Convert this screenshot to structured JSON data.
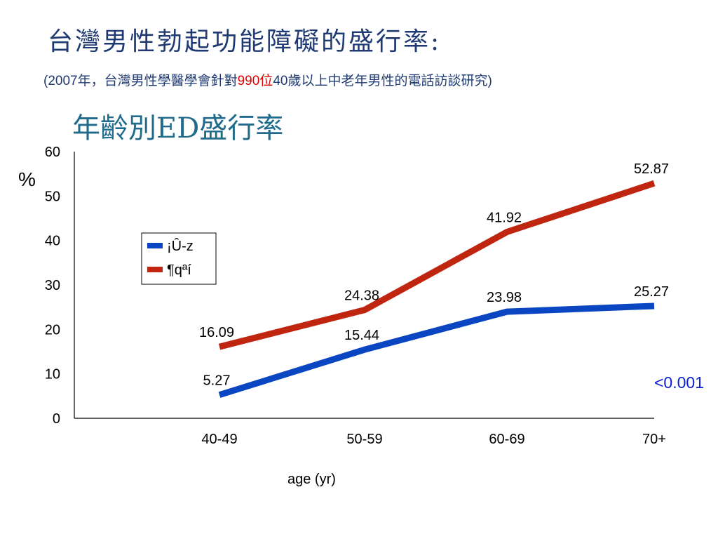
{
  "header": {
    "title": "台灣男性勃起功能障礙的盛行率:",
    "subtitle_pre": "(2007年，台灣男性學醫學會針對",
    "subtitle_highlight": "990位",
    "subtitle_post": "40歲以上中老年男性的電話訪談研究)",
    "highlight_color": "#e00000"
  },
  "note": {
    "p_value": "<0.001",
    "color": "#0a1fd0"
  },
  "chart_data": {
    "type": "line",
    "title": "年齡別ED盛行率",
    "xlabel": "age (yr)",
    "ylabel": "%",
    "categories": [
      "40-49",
      "50-59",
      "60-69",
      "70+"
    ],
    "ylim": [
      0,
      60
    ],
    "yticks": [
      "0",
      "10",
      "20",
      "30",
      "40",
      "50",
      "60"
    ],
    "grid": false,
    "legend_position": "upper-left",
    "series": [
      {
        "name": "¡Û-z",
        "color": "#0a45c2",
        "values": [
          5.27,
          15.44,
          23.98,
          25.27
        ],
        "labels": [
          "5.27",
          "15.44",
          "23.98",
          "25.27"
        ]
      },
      {
        "name": "¶qªí",
        "color": "#c0250f",
        "values": [
          16.09,
          24.38,
          41.92,
          52.87
        ],
        "labels": [
          "16.09",
          "24.38",
          "41.92",
          "52.87"
        ]
      }
    ]
  }
}
